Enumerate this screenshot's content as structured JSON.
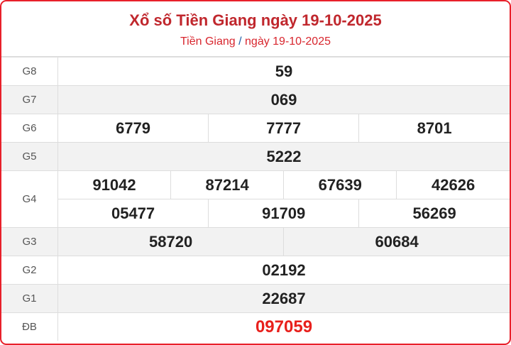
{
  "header": {
    "title": "Xổ số Tiền Giang ngày 19-10-2025",
    "breadcrumb_province": "Tiền Giang",
    "breadcrumb_separator": "/",
    "breadcrumb_date": "ngày 19-10-2025"
  },
  "prizes": {
    "g8": {
      "label": "G8",
      "numbers": [
        "59"
      ]
    },
    "g7": {
      "label": "G7",
      "numbers": [
        "069"
      ]
    },
    "g6": {
      "label": "G6",
      "numbers": [
        "6779",
        "7777",
        "8701"
      ]
    },
    "g5": {
      "label": "G5",
      "numbers": [
        "5222"
      ]
    },
    "g4": {
      "label": "G4",
      "numbers": [
        "91042",
        "87214",
        "67639",
        "42626",
        "05477",
        "91709",
        "56269"
      ]
    },
    "g3": {
      "label": "G3",
      "numbers": [
        "58720",
        "60684"
      ]
    },
    "g2": {
      "label": "G2",
      "numbers": [
        "02192"
      ]
    },
    "g1": {
      "label": "G1",
      "numbers": [
        "22687"
      ]
    },
    "db": {
      "label": "ĐB",
      "numbers": [
        "097059"
      ]
    }
  },
  "colors": {
    "accent": "#e8202a",
    "title": "#c0272d",
    "special": "#e8201c",
    "separator": "#1f5fa8"
  }
}
